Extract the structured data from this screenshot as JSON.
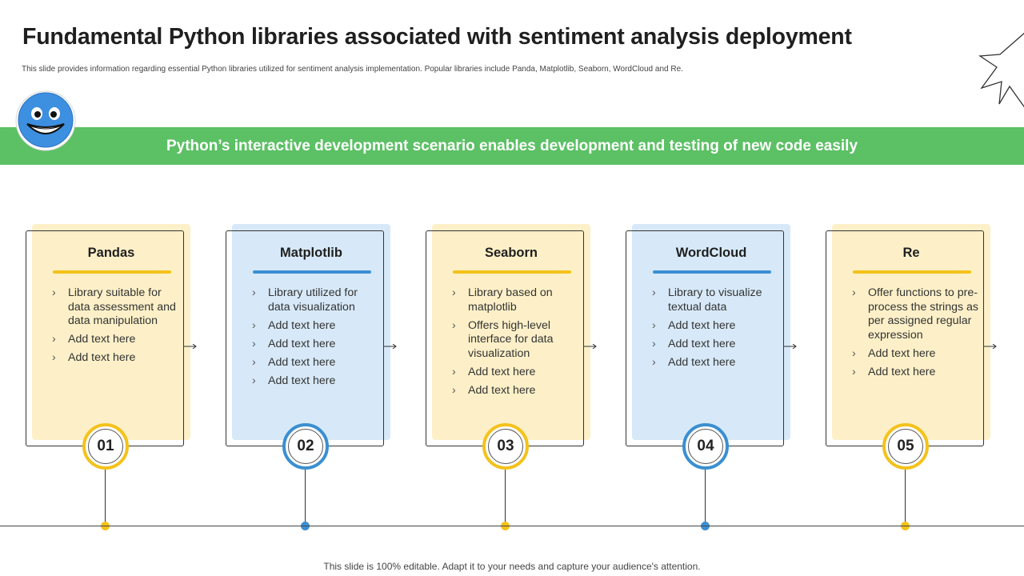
{
  "header": {
    "title": "Fundamental Python libraries associated with sentiment analysis deployment",
    "subtitle": "This slide provides information regarding essential Python libraries utilized for sentiment analysis implementation.  Popular libraries include Panda, Matplotlib, Seaborn, WordCloud and Re."
  },
  "banner": {
    "text": "Python’s interactive development scenario enables development and testing of new code easily"
  },
  "colors": {
    "banner": "#5cc065",
    "yellow_accent": "#f4c21b",
    "blue_accent": "#3b8fd1",
    "yellow_card": "#fdf0c8",
    "blue_card": "#d7e9f8"
  },
  "icons": {
    "emoji": "smiling-face-icon",
    "decoration": "starburst-outline-icon",
    "bullet": "chevron-right-icon",
    "connector": "arrow-right-icon"
  },
  "cards": [
    {
      "title": "Pandas",
      "number": "01",
      "theme": "yellow",
      "items": [
        "Library suitable for data assessment and data manipulation",
        "Add text here",
        "Add text here"
      ]
    },
    {
      "title": "Matplotlib",
      "number": "02",
      "theme": "blue",
      "items": [
        "Library utilized for data visualization",
        "Add text here",
        "Add text here",
        "Add text here",
        "Add text here"
      ]
    },
    {
      "title": "Seaborn",
      "number": "03",
      "theme": "yellow",
      "items": [
        "Library based on matplotlib",
        "Offers high-level interface for data visualization",
        "Add text here",
        "Add text here"
      ]
    },
    {
      "title": "WordCloud",
      "number": "04",
      "theme": "blue",
      "items": [
        "Library to visualize textual data",
        "Add text here",
        "Add text here",
        "Add text here"
      ]
    },
    {
      "title": "Re",
      "number": "05",
      "theme": "yellow",
      "items": [
        "Offer functions to pre-process the strings as per assigned regular expression",
        "Add text here",
        "Add text here"
      ]
    }
  ],
  "footer": {
    "text": "This slide is 100% editable. Adapt it to your needs and capture your audience's attention."
  }
}
